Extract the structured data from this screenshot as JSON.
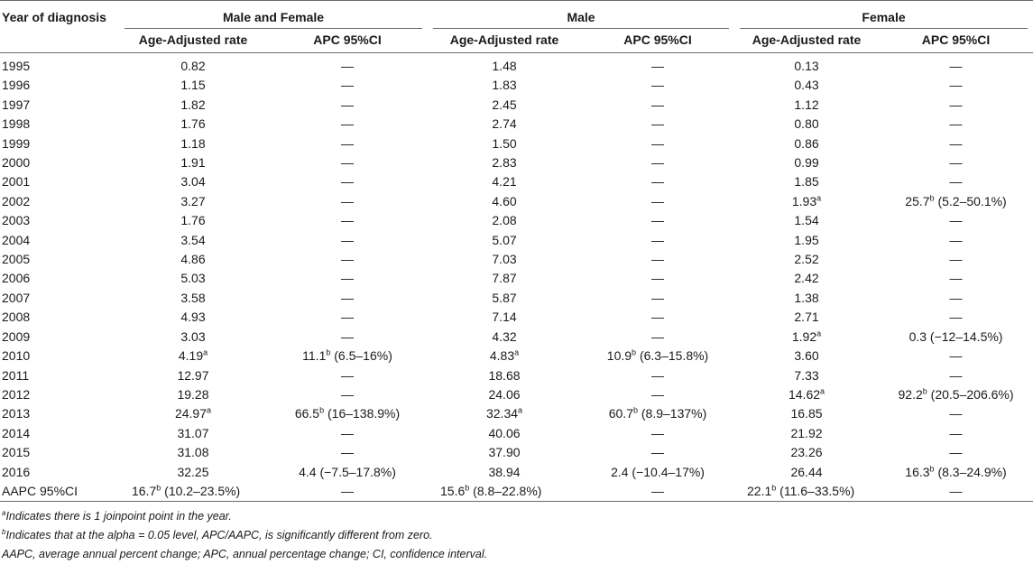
{
  "header": {
    "year_col": "Year of diagnosis",
    "groups": [
      "Male and Female",
      "Male",
      "Female"
    ],
    "sub_rate": "Age-Adjusted rate",
    "sub_apc": "APC 95%CI"
  },
  "rows": [
    {
      "year": "1995",
      "mf_rate": "0.82",
      "mf_apc": "—",
      "m_rate": "1.48",
      "m_apc": "—",
      "f_rate": "0.13",
      "f_apc": "—"
    },
    {
      "year": "1996",
      "mf_rate": "1.15",
      "mf_apc": "—",
      "m_rate": "1.83",
      "m_apc": "—",
      "f_rate": "0.43",
      "f_apc": "—"
    },
    {
      "year": "1997",
      "mf_rate": "1.82",
      "mf_apc": "—",
      "m_rate": "2.45",
      "m_apc": "—",
      "f_rate": "1.12",
      "f_apc": "—"
    },
    {
      "year": "1998",
      "mf_rate": "1.76",
      "mf_apc": "—",
      "m_rate": "2.74",
      "m_apc": "—",
      "f_rate": "0.80",
      "f_apc": "—"
    },
    {
      "year": "1999",
      "mf_rate": "1.18",
      "mf_apc": "—",
      "m_rate": "1.50",
      "m_apc": "—",
      "f_rate": "0.86",
      "f_apc": "—"
    },
    {
      "year": "2000",
      "mf_rate": "1.91",
      "mf_apc": "—",
      "m_rate": "2.83",
      "m_apc": "—",
      "f_rate": "0.99",
      "f_apc": "—"
    },
    {
      "year": "2001",
      "mf_rate": "3.04",
      "mf_apc": "—",
      "m_rate": "4.21",
      "m_apc": "—",
      "f_rate": "1.85",
      "f_apc": "—"
    },
    {
      "year": "2002",
      "mf_rate": "3.27",
      "mf_apc": "—",
      "m_rate": "4.60",
      "m_apc": "—",
      "f_rate": "1.93",
      "f_rate_sup": "a",
      "f_apc": "25.7",
      "f_apc_sup": "b",
      "f_apc_ci": " (5.2–50.1%)"
    },
    {
      "year": "2003",
      "mf_rate": "1.76",
      "mf_apc": "—",
      "m_rate": "2.08",
      "m_apc": "—",
      "f_rate": "1.54",
      "f_apc": "—"
    },
    {
      "year": "2004",
      "mf_rate": "3.54",
      "mf_apc": "—",
      "m_rate": "5.07",
      "m_apc": "—",
      "f_rate": "1.95",
      "f_apc": "—"
    },
    {
      "year": "2005",
      "mf_rate": "4.86",
      "mf_apc": "—",
      "m_rate": "7.03",
      "m_apc": "—",
      "f_rate": "2.52",
      "f_apc": "—"
    },
    {
      "year": "2006",
      "mf_rate": "5.03",
      "mf_apc": "—",
      "m_rate": "7.87",
      "m_apc": "—",
      "f_rate": "2.42",
      "f_apc": "—"
    },
    {
      "year": "2007",
      "mf_rate": "3.58",
      "mf_apc": "—",
      "m_rate": "5.87",
      "m_apc": "—",
      "f_rate": "1.38",
      "f_apc": "—"
    },
    {
      "year": "2008",
      "mf_rate": "4.93",
      "mf_apc": "—",
      "m_rate": "7.14",
      "m_apc": "—",
      "f_rate": "2.71",
      "f_apc": "—"
    },
    {
      "year": "2009",
      "mf_rate": "3.03",
      "mf_apc": "—",
      "m_rate": "4.32",
      "m_apc": "—",
      "f_rate": "1.92",
      "f_rate_sup": "a",
      "f_apc": "0.3 (−12–14.5%)"
    },
    {
      "year": "2010",
      "mf_rate": "4.19",
      "mf_rate_sup": "a",
      "mf_apc": "11.1",
      "mf_apc_sup": "b",
      "mf_apc_ci": " (6.5–16%)",
      "m_rate": "4.83",
      "m_rate_sup": "a",
      "m_apc": "10.9",
      "m_apc_sup": "b",
      "m_apc_ci": " (6.3–15.8%)",
      "f_rate": "3.60",
      "f_apc": "—"
    },
    {
      "year": "2011",
      "mf_rate": "12.97",
      "mf_apc": "—",
      "m_rate": "18.68",
      "m_apc": "—",
      "f_rate": "7.33",
      "f_apc": "—"
    },
    {
      "year": "2012",
      "mf_rate": "19.28",
      "mf_apc": "—",
      "m_rate": "24.06",
      "m_apc": "—",
      "f_rate": "14.62",
      "f_rate_sup": "a",
      "f_apc": "92.2",
      "f_apc_sup": "b",
      "f_apc_ci": " (20.5–206.6%)"
    },
    {
      "year": "2013",
      "mf_rate": "24.97",
      "mf_rate_sup": "a",
      "mf_apc": "66.5",
      "mf_apc_sup": "b",
      "mf_apc_ci": " (16–138.9%)",
      "m_rate": "32.34",
      "m_rate_sup": "a",
      "m_apc": "60.7",
      "m_apc_sup": "b",
      "m_apc_ci": " (8.9–137%)",
      "f_rate": "16.85",
      "f_apc": "—"
    },
    {
      "year": "2014",
      "mf_rate": "31.07",
      "mf_apc": "—",
      "m_rate": "40.06",
      "m_apc": "—",
      "f_rate": "21.92",
      "f_apc": "—"
    },
    {
      "year": "2015",
      "mf_rate": "31.08",
      "mf_apc": "—",
      "m_rate": "37.90",
      "m_apc": "—",
      "f_rate": "23.26",
      "f_apc": "—"
    },
    {
      "year": "2016",
      "mf_rate": "32.25",
      "mf_apc": "4.4 (−7.5–17.8%)",
      "m_rate": "38.94",
      "m_apc": "2.4 (−10.4–17%)",
      "f_rate": "26.44",
      "f_apc": "16.3",
      "f_apc_sup": "b",
      "f_apc_ci": " (8.3–24.9%)"
    }
  ],
  "aapc_row": {
    "label": "AAPC 95%CI",
    "mf_val": "16.7",
    "mf_sup": "b",
    "mf_ci": " (10.2–23.5%)",
    "mf_apc": "—",
    "m_val": "15.6",
    "m_sup": "b",
    "m_ci": " (8.8–22.8%)",
    "m_apc": "—",
    "f_val": "22.1",
    "f_sup": "b",
    "f_ci": " (11.6–33.5%)",
    "f_apc": "—"
  },
  "footnotes": [
    {
      "sup": "a",
      "text": "Indicates there is 1 joinpoint point in the year."
    },
    {
      "sup": "b",
      "text": "Indicates that at the alpha = 0.05 level, APC/AAPC, is significantly different from zero."
    },
    {
      "sup": "",
      "text": "AAPC, average annual percent change; APC, annual percentage change; CI, confidence interval."
    }
  ]
}
